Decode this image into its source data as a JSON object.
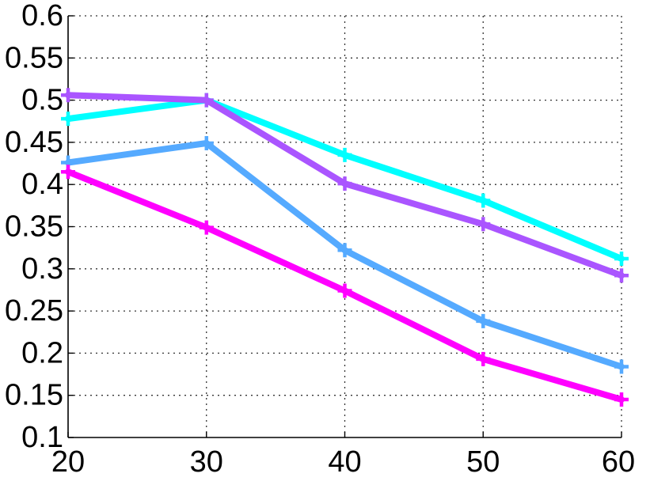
{
  "chart_data": {
    "type": "line",
    "title": "",
    "xlabel": "",
    "ylabel": "",
    "x": [
      20,
      30,
      40,
      50,
      60
    ],
    "xlim": [
      20,
      60
    ],
    "ylim": [
      0.1,
      0.6
    ],
    "xticks": [
      20,
      30,
      40,
      50,
      60
    ],
    "yticks": [
      0.1,
      0.15,
      0.2,
      0.25,
      0.3,
      0.35,
      0.4,
      0.45,
      0.5,
      0.55,
      0.6
    ],
    "xtick_labels": [
      "20",
      "30",
      "40",
      "50",
      "60"
    ],
    "ytick_labels": [
      "0.1",
      "0.15",
      "0.2",
      "0.25",
      "0.3",
      "0.35",
      "0.4",
      "0.45",
      "0.5",
      "0.55",
      "0.6"
    ],
    "grid": true,
    "grid_style": "dotted",
    "legend": "none",
    "marker": "plus",
    "series": [
      {
        "color": "#00FFFF",
        "values": [
          0.478,
          0.5,
          0.435,
          0.381,
          0.312
        ]
      },
      {
        "color": "#AA55FF",
        "values": [
          0.506,
          0.5,
          0.401,
          0.353,
          0.292
        ]
      },
      {
        "color": "#55AAFF",
        "values": [
          0.426,
          0.449,
          0.322,
          0.238,
          0.184
        ]
      },
      {
        "color": "#FF00FF",
        "values": [
          0.415,
          0.349,
          0.274,
          0.193,
          0.145
        ]
      }
    ]
  }
}
